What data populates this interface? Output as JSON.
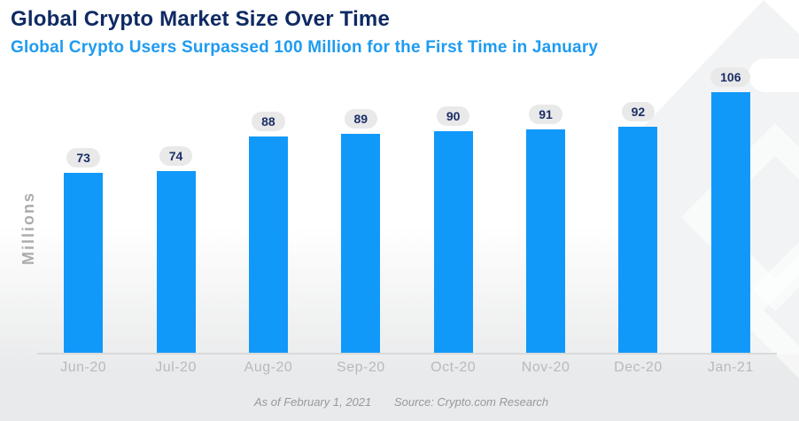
{
  "header": {
    "title": "Global Crypto Market Size Over Time",
    "subtitle": "Global Crypto Users Surpassed 100 Million for the First Time in January"
  },
  "chart_data": {
    "type": "bar",
    "title": "Global Crypto Market Size Over Time",
    "subtitle": "Global Crypto Users Surpassed 100 Million for the First Time in January",
    "categories": [
      "Jun-20",
      "Jul-20",
      "Aug-20",
      "Sep-20",
      "Oct-20",
      "Nov-20",
      "Dec-20",
      "Jan-21"
    ],
    "values": [
      73,
      74,
      88,
      89,
      90,
      91,
      92,
      106
    ],
    "xlabel": "",
    "ylabel": "Millions",
    "ylim": [
      0,
      120
    ],
    "grid": false,
    "legend_position": "none",
    "data_labels": true,
    "data_label_style": "gray-pill",
    "bar_color": "#1199fa",
    "pill_bg_color": "#e9e9ea",
    "pill_text_color": "#1c2f66",
    "axis_line_color": "#d9dadb",
    "tick_label_color": "#b7babc"
  },
  "footer": {
    "as_of": "As of February 1, 2021",
    "source": "Source: Crypto.com Research"
  },
  "colors": {
    "title": "#0e2a63",
    "subtitle": "#1e9bf0",
    "watermark": "#f2f3f4"
  }
}
